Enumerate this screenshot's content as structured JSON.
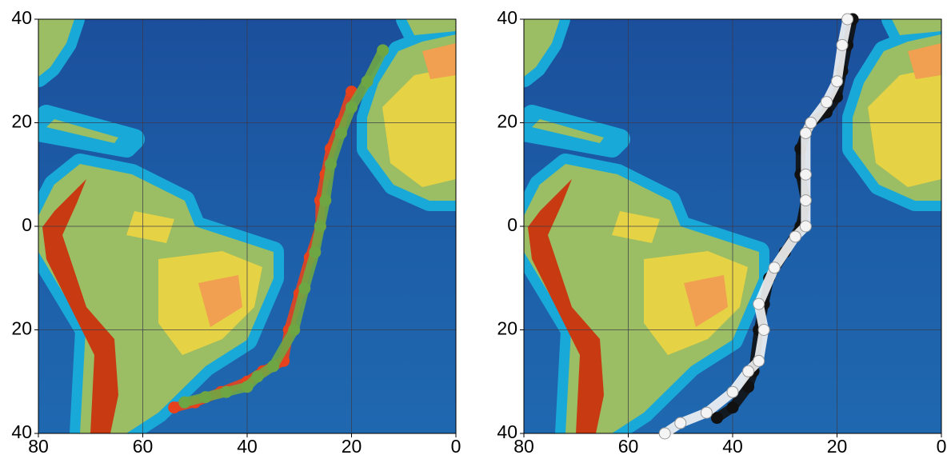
{
  "chart_data": [
    {
      "type": "scatter",
      "xlim": [
        80,
        0
      ],
      "ylim": [
        -40,
        40
      ],
      "xticks": [
        80,
        60,
        40,
        20,
        0
      ],
      "yticks": [
        40,
        20,
        0,
        {
          "value": -20,
          "label": "20"
        },
        {
          "value": -40,
          "label": "40"
        }
      ],
      "grid": true,
      "series": [
        {
          "color": "#e5421d",
          "x": [
            54,
            50,
            45,
            40,
            37,
            33,
            32,
            30,
            28,
            26,
            26,
            25,
            24,
            22,
            20
          ],
          "values": [
            -35,
            -34,
            -32,
            -30,
            -28,
            -26,
            -20,
            -13,
            -6,
            0,
            5,
            10,
            15,
            20,
            26
          ]
        },
        {
          "color": "#6fa644",
          "x": [
            52,
            48,
            44,
            40,
            38,
            35,
            31,
            29,
            27,
            26,
            25,
            24,
            22,
            20,
            17,
            14
          ],
          "values": [
            -34,
            -33,
            -32,
            -31,
            -29,
            -27,
            -20,
            -12,
            -5,
            0,
            5,
            12,
            18,
            23,
            28,
            34
          ]
        }
      ]
    },
    {
      "type": "scatter",
      "xlim": [
        80,
        0
      ],
      "ylim": [
        -40,
        40
      ],
      "xticks": [
        80,
        60,
        40,
        20,
        0
      ],
      "yticks": [
        40,
        20,
        0,
        {
          "value": -20,
          "label": "20"
        },
        {
          "value": -40,
          "label": "40"
        }
      ],
      "grid": true,
      "series": [
        {
          "color": "#111111",
          "x": [
            43,
            40,
            37,
            36,
            35,
            34,
            33,
            30,
            27,
            26,
            27,
            27,
            26,
            25,
            22,
            20,
            19,
            18,
            17
          ],
          "values": [
            -37,
            -35,
            -31,
            -28,
            -20,
            -15,
            -10,
            -5,
            0,
            5,
            10,
            15,
            18,
            20,
            22,
            25,
            30,
            35,
            40
          ]
        },
        {
          "color": "#f4f4f4",
          "x": [
            53,
            50,
            45,
            40,
            37,
            35,
            34,
            35,
            32,
            28,
            26,
            26,
            26,
            26,
            25,
            22,
            20,
            19,
            18
          ],
          "values": [
            -40,
            -38,
            -36,
            -32,
            -28,
            -26,
            -20,
            -15,
            -8,
            -2,
            0,
            5,
            10,
            18,
            20,
            24,
            28,
            35,
            40
          ]
        }
      ]
    }
  ]
}
